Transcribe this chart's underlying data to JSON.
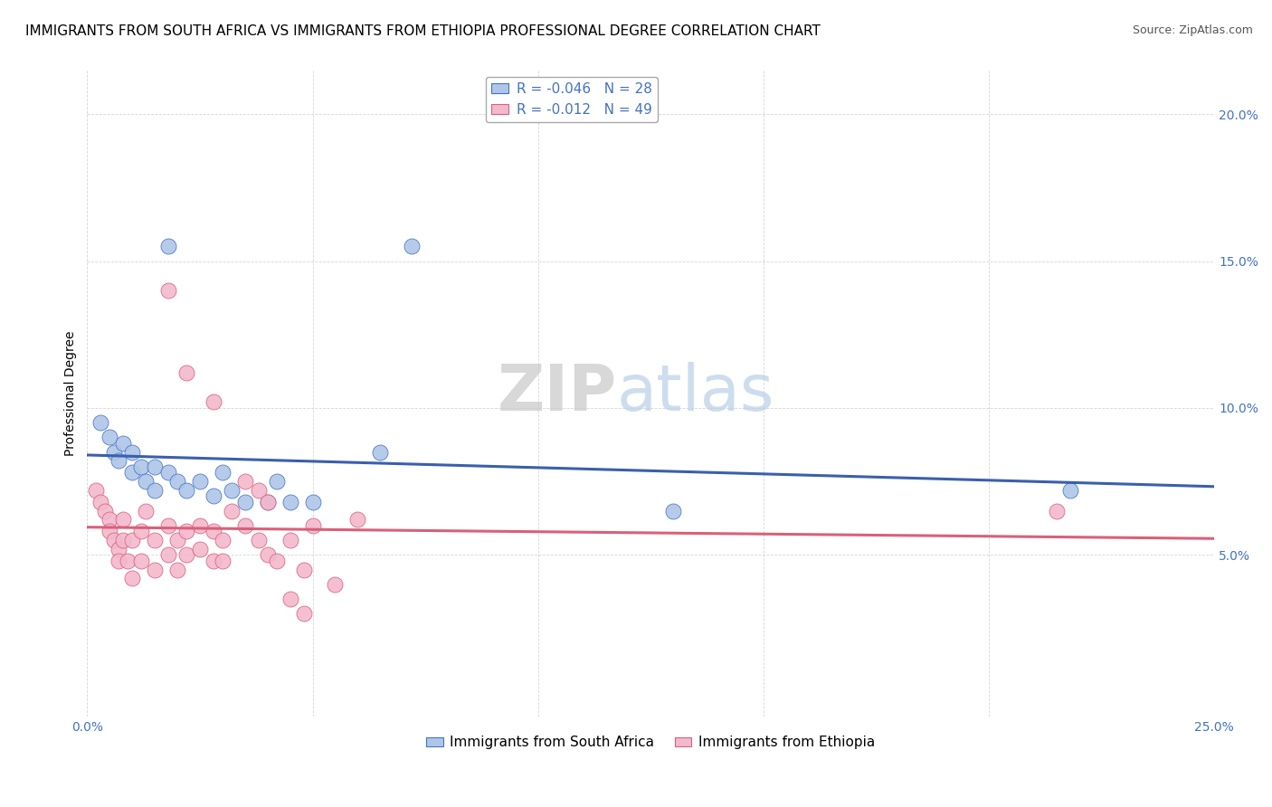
{
  "title": "IMMIGRANTS FROM SOUTH AFRICA VS IMMIGRANTS FROM ETHIOPIA PROFESSIONAL DEGREE CORRELATION CHART",
  "source": "Source: ZipAtlas.com",
  "ylabel": "Professional Degree",
  "xlim": [
    0.0,
    0.25
  ],
  "ylim": [
    -0.005,
    0.215
  ],
  "xticks": [
    0.0,
    0.05,
    0.1,
    0.15,
    0.2,
    0.25
  ],
  "yticks": [
    0.05,
    0.1,
    0.15,
    0.2
  ],
  "xticklabels": [
    "0.0%",
    "",
    "",
    "",
    "",
    "25.0%"
  ],
  "yticklabels": [
    "5.0%",
    "10.0%",
    "15.0%",
    "20.0%"
  ],
  "blue_scatter": [
    [
      0.003,
      0.095
    ],
    [
      0.005,
      0.09
    ],
    [
      0.006,
      0.085
    ],
    [
      0.007,
      0.082
    ],
    [
      0.008,
      0.088
    ],
    [
      0.01,
      0.085
    ],
    [
      0.01,
      0.078
    ],
    [
      0.012,
      0.08
    ],
    [
      0.013,
      0.075
    ],
    [
      0.015,
      0.08
    ],
    [
      0.015,
      0.072
    ],
    [
      0.018,
      0.078
    ],
    [
      0.02,
      0.075
    ],
    [
      0.022,
      0.072
    ],
    [
      0.025,
      0.075
    ],
    [
      0.028,
      0.07
    ],
    [
      0.03,
      0.078
    ],
    [
      0.032,
      0.072
    ],
    [
      0.035,
      0.068
    ],
    [
      0.04,
      0.068
    ],
    [
      0.042,
      0.075
    ],
    [
      0.045,
      0.068
    ],
    [
      0.05,
      0.068
    ],
    [
      0.065,
      0.085
    ],
    [
      0.018,
      0.155
    ],
    [
      0.072,
      0.155
    ],
    [
      0.13,
      0.065
    ],
    [
      0.218,
      0.072
    ]
  ],
  "pink_scatter": [
    [
      0.002,
      0.072
    ],
    [
      0.003,
      0.068
    ],
    [
      0.004,
      0.065
    ],
    [
      0.005,
      0.062
    ],
    [
      0.005,
      0.058
    ],
    [
      0.006,
      0.055
    ],
    [
      0.007,
      0.052
    ],
    [
      0.007,
      0.048
    ],
    [
      0.008,
      0.062
    ],
    [
      0.008,
      0.055
    ],
    [
      0.009,
      0.048
    ],
    [
      0.01,
      0.042
    ],
    [
      0.01,
      0.055
    ],
    [
      0.012,
      0.058
    ],
    [
      0.012,
      0.048
    ],
    [
      0.013,
      0.065
    ],
    [
      0.015,
      0.055
    ],
    [
      0.015,
      0.045
    ],
    [
      0.018,
      0.06
    ],
    [
      0.018,
      0.05
    ],
    [
      0.02,
      0.055
    ],
    [
      0.02,
      0.045
    ],
    [
      0.022,
      0.058
    ],
    [
      0.022,
      0.05
    ],
    [
      0.025,
      0.06
    ],
    [
      0.025,
      0.052
    ],
    [
      0.028,
      0.058
    ],
    [
      0.028,
      0.048
    ],
    [
      0.03,
      0.055
    ],
    [
      0.03,
      0.048
    ],
    [
      0.032,
      0.065
    ],
    [
      0.035,
      0.06
    ],
    [
      0.038,
      0.055
    ],
    [
      0.04,
      0.05
    ],
    [
      0.042,
      0.048
    ],
    [
      0.045,
      0.055
    ],
    [
      0.048,
      0.045
    ],
    [
      0.05,
      0.06
    ],
    [
      0.018,
      0.14
    ],
    [
      0.022,
      0.112
    ],
    [
      0.028,
      0.102
    ],
    [
      0.035,
      0.075
    ],
    [
      0.038,
      0.072
    ],
    [
      0.04,
      0.068
    ],
    [
      0.045,
      0.035
    ],
    [
      0.048,
      0.03
    ],
    [
      0.055,
      0.04
    ],
    [
      0.215,
      0.065
    ],
    [
      0.06,
      0.062
    ]
  ],
  "blue_color": "#aec6e8",
  "pink_color": "#f2b8cc",
  "blue_edge_color": "#4472c4",
  "pink_edge_color": "#d9607a",
  "blue_line_color": "#3a5fad",
  "pink_line_color": "#d9607a",
  "legend_r_blue": "R = -0.046",
  "legend_n_blue": "N = 28",
  "legend_r_pink": "R = -0.012",
  "legend_n_pink": "N = 49",
  "legend_label_blue": "Immigrants from South Africa",
  "legend_label_pink": "Immigrants from Ethiopia",
  "watermark_zip": "ZIP",
  "watermark_atlas": "atlas",
  "title_fontsize": 11,
  "source_fontsize": 9,
  "axis_label_fontsize": 10,
  "tick_fontsize": 10,
  "legend_fontsize": 11
}
